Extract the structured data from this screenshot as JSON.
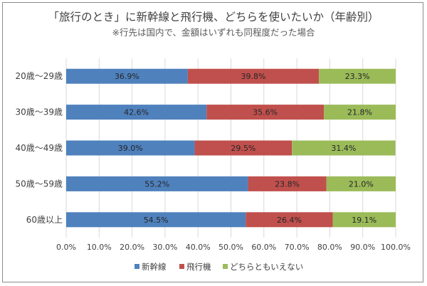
{
  "chart_data": {
    "type": "bar",
    "orientation": "horizontal",
    "stacked": true,
    "title": "「旅行のとき」に新幹線と飛行機、どちらを使いたいか（年齢別）",
    "subtitle": "※行先は国内で、金額はいずれも同程度だった場合",
    "categories": [
      "20歳～29歳",
      "30歳～39歳",
      "40歳～49歳",
      "50歳～59歳",
      "60歳以上"
    ],
    "series": [
      {
        "name": "新幹線",
        "color": "#4f81bd",
        "values": [
          36.9,
          42.6,
          39.0,
          55.2,
          54.5
        ],
        "labels": [
          "36.9%",
          "42.6%",
          "39.0%",
          "55.2%",
          "54.5%"
        ]
      },
      {
        "name": "飛行機",
        "color": "#c0504d",
        "values": [
          39.8,
          35.6,
          29.5,
          23.8,
          26.4
        ],
        "labels": [
          "39.8%",
          "35.6%",
          "29.5%",
          "23.8%",
          "26.4%"
        ]
      },
      {
        "name": "どちらともいえない",
        "color": "#9bbb59",
        "values": [
          23.3,
          21.8,
          31.4,
          21.0,
          19.1
        ],
        "labels": [
          "23.3%",
          "21.8%",
          "31.4%",
          "21.0%",
          "19.1%"
        ]
      }
    ],
    "xlim": [
      0,
      100
    ],
    "xticks": [
      "0.0%",
      "10.0%",
      "20.0%",
      "30.0%",
      "40.0%",
      "50.0%",
      "60.0%",
      "70.0%",
      "80.0%",
      "90.0%",
      "100.0%"
    ],
    "grid": true,
    "legend_position": "bottom"
  }
}
